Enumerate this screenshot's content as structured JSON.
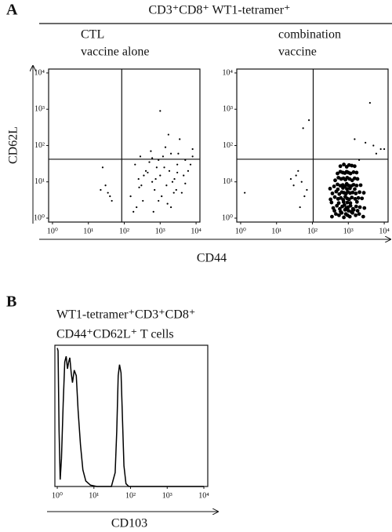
{
  "figure": {
    "panel_a_label": "A",
    "panel_a_title": "CD3⁺CD8⁺ WT1-tetramer⁺",
    "panel_a_ylabel": "CD62L",
    "panel_a_xlabel": "CD44",
    "panel_b_label": "B"
  },
  "chart_data": [
    {
      "type": "scatter",
      "title": [
        "CTL",
        "vaccine alone"
      ],
      "xscale": "log",
      "yscale": "log",
      "color": "#000000",
      "xlim": [
        0.78,
        12800
      ],
      "ylim": [
        0.78,
        12800
      ],
      "xticks": [
        {
          "value": 1,
          "label": "10⁰"
        },
        {
          "value": 10,
          "label": "10¹"
        },
        {
          "value": 100,
          "label": "10²"
        },
        {
          "value": 1000,
          "label": "10³"
        },
        {
          "value": 10000,
          "label": "10⁴"
        }
      ],
      "yticks": [
        {
          "value": 1,
          "label": "10⁰"
        },
        {
          "value": 10,
          "label": "10¹"
        },
        {
          "value": 100,
          "label": "10²"
        },
        {
          "value": 1000,
          "label": "10³"
        },
        {
          "value": 10000,
          "label": "10⁴"
        }
      ],
      "gates": {
        "x": 85,
        "y": 42
      },
      "x": [
        1000,
        25,
        22,
        30,
        35,
        40,
        45,
        150,
        200,
        250,
        300,
        350,
        400,
        500,
        600,
        700,
        800,
        900,
        1000,
        1200,
        1500,
        1800,
        2000,
        2500,
        3000,
        3500,
        4000,
        5000,
        6000,
        8000,
        220,
        280,
        330,
        450,
        550,
        650,
        750,
        1100,
        1300,
        1600,
        2200,
        2800,
        3200,
        4500,
        7000,
        180,
        260,
        600,
        900,
        1400,
        2000,
        3000,
        5000,
        1700,
        2400,
        8000
      ],
      "values": [
        900,
        25,
        6,
        8,
        5,
        4,
        3,
        4,
        30,
        12,
        8,
        15,
        20,
        35,
        10,
        6,
        25,
        40,
        15,
        50,
        8,
        20,
        60,
        12,
        30,
        150,
        5,
        40,
        20,
        80,
        2,
        50,
        3,
        18,
        70,
        1.5,
        12,
        4,
        25,
        2.5,
        10,
        6,
        60,
        15,
        30,
        1.5,
        7,
        45,
        3,
        90,
        2,
        18,
        9,
        200,
        5,
        50
      ]
    },
    {
      "type": "scatter",
      "title": [
        "combination",
        "vaccine"
      ],
      "xscale": "log",
      "yscale": "log",
      "color": "#000000",
      "xlim": [
        0.78,
        12800
      ],
      "ylim": [
        0.78,
        12800
      ],
      "xticks": [
        {
          "value": 1,
          "label": "10⁰"
        },
        {
          "value": 10,
          "label": "10¹"
        },
        {
          "value": 100,
          "label": "10²"
        },
        {
          "value": 1000,
          "label": "10³"
        },
        {
          "value": 10000,
          "label": "10⁴"
        }
      ],
      "yticks": [
        {
          "value": 1,
          "label": "10⁰"
        },
        {
          "value": 10,
          "label": "10¹"
        },
        {
          "value": 100,
          "label": "10²"
        },
        {
          "value": 1000,
          "label": "10³"
        },
        {
          "value": 10000,
          "label": "10⁴"
        }
      ],
      "gates": {
        "x": 105,
        "y": 42
      },
      "x": [
        4000,
        80,
        55,
        1.3,
        40,
        50,
        60,
        30,
        35,
        45,
        70,
        25,
        3000,
        5000,
        8000,
        10000,
        6000,
        1500,
        2000,
        350,
        450,
        550,
        650,
        750,
        850,
        950,
        1100,
        1300,
        1600,
        2000,
        2600,
        380,
        480,
        580,
        680,
        780,
        880,
        980,
        1150,
        1350,
        1650,
        2100,
        2800,
        320,
        420,
        520,
        620,
        720,
        820,
        920,
        1050,
        1250,
        1550,
        1900,
        2400,
        360,
        460,
        560,
        660,
        760,
        860,
        960,
        1120,
        1320,
        1620,
        2050,
        2700,
        400,
        500,
        600,
        700,
        800,
        900,
        1000,
        1200,
        1400,
        1700,
        2200,
        430,
        530,
        630,
        730,
        830,
        930,
        1080,
        1280,
        1500,
        1800,
        500,
        600,
        700,
        800,
        900,
        1000,
        1150,
        1400,
        1700,
        600,
        750,
        900,
        1050,
        1250,
        1500,
        410,
        610,
        810,
        1010,
        1210,
        1410,
        1810,
        340,
        540,
        740,
        940,
        1140,
        1740,
        310,
        510,
        710,
        910,
        1110,
        1510
      ],
      "values": [
        1500,
        500,
        300,
        5,
        20,
        10,
        4,
        8,
        15,
        2,
        6,
        12,
        120,
        100,
        80,
        80,
        60,
        150,
        40,
        1.1,
        1.3,
        1.2,
        1.4,
        1.05,
        1.3,
        1.2,
        1.1,
        1.4,
        1.2,
        1.3,
        1.1,
        1.9,
        2.2,
        1.8,
        2.1,
        2.3,
        1.9,
        2.0,
        2.2,
        1.8,
        2.1,
        2.0,
        1.9,
        3.3,
        3.8,
        3.4,
        3.6,
        3.2,
        3.9,
        3.5,
        3.3,
        3.7,
        3.4,
        3.6,
        3.5,
        4.8,
        5.4,
        4.6,
        5.2,
        5.0,
        4.7,
        5.3,
        4.9,
        5.1,
        4.8,
        5.2,
        5.0,
        7.5,
        8.5,
        7.8,
        8.2,
        7.6,
        8.8,
        8.0,
        7.7,
        8.3,
        7.9,
        8.1,
        11,
        13,
        12,
        12.5,
        11.5,
        13,
        12,
        11,
        12.5,
        12,
        17,
        19,
        18,
        17.5,
        19,
        18,
        17,
        18.5,
        18,
        27,
        30,
        26,
        29,
        28,
        27,
        1.6,
        1.5,
        1.7,
        1.6,
        1.5,
        1.7,
        1.6,
        2.7,
        2.6,
        2.8,
        2.7,
        2.6,
        2.8,
        6.5,
        6.2,
        6.8,
        6.4,
        6.6,
        6.3
      ]
    },
    {
      "type": "line",
      "title": [
        "WT1-tetramer⁺CD3⁺CD8⁺",
        "CD44⁺CD62L⁺ T cells"
      ],
      "xlabel": "CD103",
      "xscale": "log",
      "color": "#000000",
      "xlim": [
        0.86,
        12800
      ],
      "ylim": [
        0,
        102
      ],
      "xticks": [
        {
          "value": 1,
          "label": "10⁰"
        },
        {
          "value": 10,
          "label": "10¹"
        },
        {
          "value": 100,
          "label": "10²"
        },
        {
          "value": 1000,
          "label": "10³"
        },
        {
          "value": 10000,
          "label": "10⁴"
        }
      ],
      "x": [
        1.0,
        1.05,
        1.12,
        1.2,
        1.3,
        1.45,
        1.6,
        1.75,
        1.9,
        2.05,
        2.2,
        2.4,
        2.6,
        2.9,
        3.3,
        3.7,
        4.3,
        5,
        6,
        8,
        12,
        20,
        30,
        38,
        42,
        46,
        50,
        55,
        60,
        66,
        75,
        90,
        200,
        1000,
        10000
      ],
      "values": [
        100,
        98,
        40,
        5,
        20,
        60,
        90,
        94,
        85,
        90,
        93,
        82,
        75,
        84,
        80,
        55,
        30,
        12,
        4,
        1,
        0,
        0,
        0,
        10,
        40,
        80,
        88,
        82,
        50,
        15,
        2,
        0,
        0,
        0,
        0
      ]
    }
  ]
}
